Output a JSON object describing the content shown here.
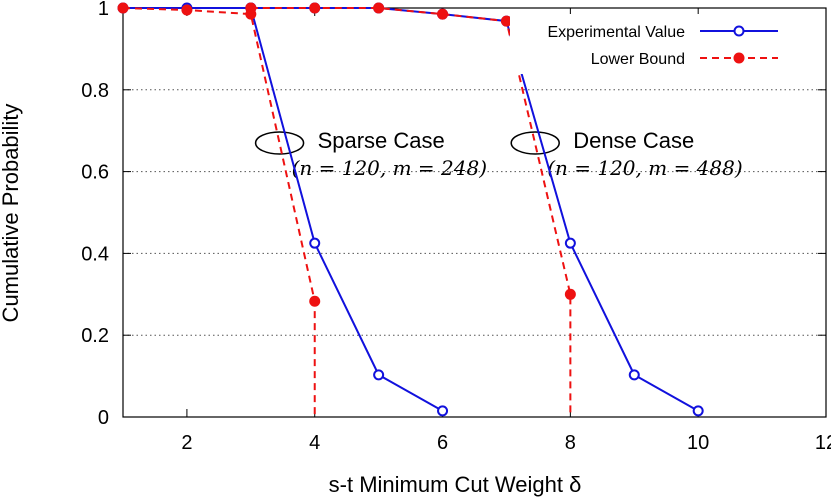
{
  "chart_data": {
    "type": "line",
    "xlabel": "s-t Minimum Cut Weight δ",
    "ylabel": "Cumulative Probability",
    "xlim": [
      1,
      12
    ],
    "ylim": [
      0,
      1
    ],
    "xticks": [
      2,
      4,
      6,
      8,
      10,
      12
    ],
    "yticks": [
      0,
      0.2,
      0.4,
      0.6,
      0.8,
      1
    ],
    "ytick_labels": [
      "0",
      "0.2",
      "0.4",
      "0.6",
      "0.8",
      "1"
    ],
    "grid": "horizontal dotted",
    "legend_position": "top-right",
    "series": [
      {
        "name": "Experimental Value",
        "color": "#1111dd",
        "style": "solid",
        "marker": "open-circle",
        "segments": [
          {
            "x": [
              1,
              2,
              3,
              4,
              5,
              6
            ],
            "y": [
              1.0,
              1.0,
              1.0,
              0.425,
              0.103,
              0.015
            ]
          },
          {
            "x": [
              3,
              4,
              5,
              6,
              7,
              8,
              9,
              10
            ],
            "y": [
              1.0,
              1.0,
              1.0,
              0.985,
              0.968,
              0.425,
              0.103,
              0.015
            ]
          }
        ]
      },
      {
        "name": "Lower Bound",
        "color": "#ee1111",
        "style": "dashed",
        "marker": "filled-circle",
        "segments": [
          {
            "x": [
              1,
              2,
              3,
              4,
              4
            ],
            "y": [
              1.0,
              0.995,
              0.985,
              0.283,
              0.0
            ]
          },
          {
            "x": [
              3,
              4,
              5,
              6,
              7,
              8,
              8
            ],
            "y": [
              1.0,
              1.0,
              1.0,
              0.985,
              0.968,
              0.3,
              0.0
            ]
          }
        ]
      }
    ],
    "annotations": [
      {
        "title": "Sparse Case",
        "params": "(n = 120, m = 248)",
        "ellipse_at": [
          3.45,
          0.67
        ]
      },
      {
        "title": "Dense Case",
        "params": "(n = 120, m = 488)",
        "ellipse_at": [
          7.45,
          0.67
        ]
      }
    ]
  }
}
